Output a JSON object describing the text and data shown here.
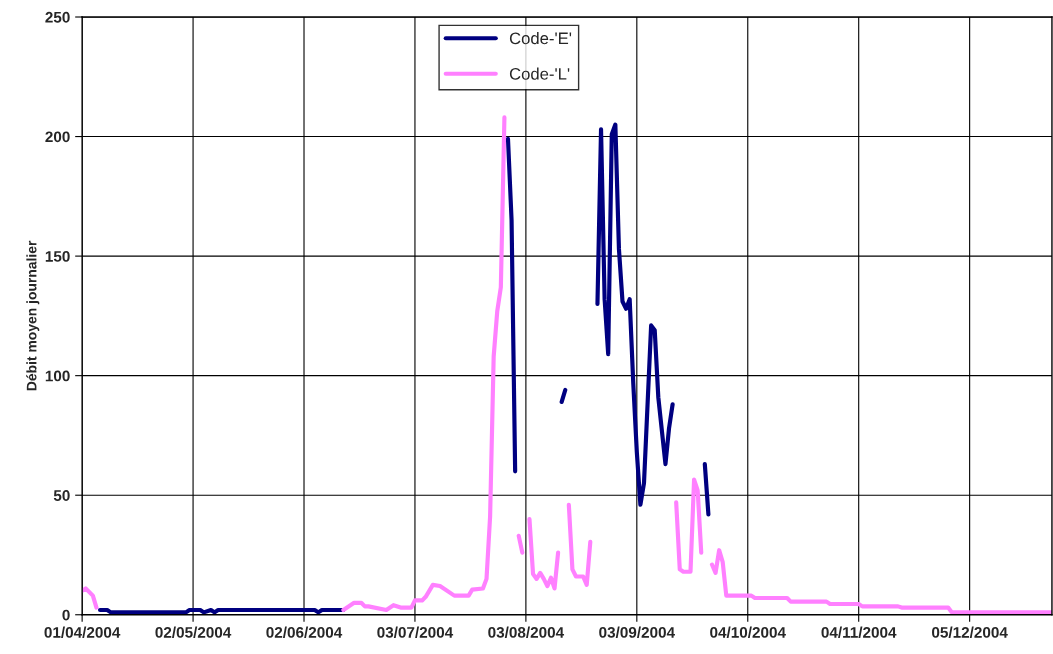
{
  "chart_data": {
    "type": "line",
    "ylabel": "Débit moyen journalier",
    "xlim": [
      "2004-04-01",
      "2004-12-28"
    ],
    "ylim": [
      0,
      250
    ],
    "yticks": [
      0,
      50,
      100,
      150,
      200,
      250
    ],
    "xticks": [
      {
        "value": "2004-04-01",
        "label": "01/04/2004"
      },
      {
        "value": "2004-05-02",
        "label": "02/05/2004"
      },
      {
        "value": "2004-06-02",
        "label": "02/06/2004"
      },
      {
        "value": "2004-07-03",
        "label": "03/07/2004"
      },
      {
        "value": "2004-08-03",
        "label": "03/08/2004"
      },
      {
        "value": "2004-09-03",
        "label": "03/09/2004"
      },
      {
        "value": "2004-10-04",
        "label": "04/10/2004"
      },
      {
        "value": "2004-11-04",
        "label": "04/11/2004"
      },
      {
        "value": "2004-12-05",
        "label": "05/12/2004"
      }
    ],
    "grid": true,
    "legend": "top",
    "line_style": "solid",
    "marker": "none",
    "series": [
      {
        "name": "Code-'E'",
        "color": "#000080",
        "x": [
          "2004-04-06",
          "2004-04-08",
          "2004-04-09",
          "2004-04-30",
          "2004-05-01",
          "2004-05-04",
          "2004-05-05",
          "2004-05-07",
          "2004-05-08",
          "2004-05-09",
          "2004-06-05",
          "2004-06-06",
          "2004-06-07",
          "2004-06-13",
          "2004-06-14",
          "2004-07-29",
          "2004-07-30",
          "2004-07-31",
          "2004-08-01",
          "2004-08-13",
          "2004-08-14",
          "2004-08-15",
          "2004-08-23",
          "2004-08-24",
          "2004-08-25",
          "2004-08-26",
          "2004-08-27",
          "2004-08-28",
          "2004-08-29",
          "2004-08-30",
          "2004-08-31",
          "2004-09-01",
          "2004-09-02",
          "2004-09-03",
          "2004-09-04",
          "2004-09-05",
          "2004-09-07",
          "2004-09-08",
          "2004-09-09",
          "2004-09-11",
          "2004-09-12",
          "2004-09-13",
          "2004-09-14",
          "2004-09-22",
          "2004-09-23"
        ],
        "values": [
          2,
          2,
          1,
          1,
          2,
          2,
          1,
          2,
          1,
          2,
          2,
          1,
          2,
          2,
          null,
          199,
          165,
          60,
          null,
          89,
          94,
          null,
          130,
          203,
          132,
          109,
          201,
          205,
          153,
          131,
          128,
          132,
          97,
          68,
          46,
          55,
          121,
          119,
          91,
          63,
          78,
          88,
          null,
          63,
          42
        ]
      },
      {
        "name": "Code-'L'",
        "color": "#ff80ff",
        "x": [
          "2004-04-01",
          "2004-04-02",
          "2004-04-04",
          "2004-04-05",
          "2004-04-06",
          "2004-06-13",
          "2004-06-16",
          "2004-06-18",
          "2004-06-19",
          "2004-06-20",
          "2004-06-25",
          "2004-06-27",
          "2004-06-29",
          "2004-07-02",
          "2004-07-03",
          "2004-07-05",
          "2004-07-06",
          "2004-07-08",
          "2004-07-10",
          "2004-07-14",
          "2004-07-18",
          "2004-07-19",
          "2004-07-22",
          "2004-07-23",
          "2004-07-24",
          "2004-07-25",
          "2004-07-26",
          "2004-07-27",
          "2004-07-28",
          "2004-07-29",
          "2004-08-01",
          "2004-08-02",
          "2004-08-03",
          "2004-08-04",
          "2004-08-05",
          "2004-08-06",
          "2004-08-07",
          "2004-08-08",
          "2004-08-09",
          "2004-08-10",
          "2004-08-11",
          "2004-08-12",
          "2004-08-13",
          "2004-08-15",
          "2004-08-16",
          "2004-08-17",
          "2004-08-19",
          "2004-08-20",
          "2004-08-21",
          "2004-08-22",
          "2004-09-14",
          "2004-09-15",
          "2004-09-16",
          "2004-09-18",
          "2004-09-19",
          "2004-09-20",
          "2004-09-21",
          "2004-09-22",
          "2004-09-24",
          "2004-09-25",
          "2004-09-26",
          "2004-09-27",
          "2004-09-28",
          "2004-10-05",
          "2004-10-06",
          "2004-10-15",
          "2004-10-16",
          "2004-10-26",
          "2004-10-27",
          "2004-11-04",
          "2004-11-05",
          "2004-11-15",
          "2004-11-16",
          "2004-11-29",
          "2004-11-30",
          "2004-12-28"
        ],
        "values": [
          10,
          11,
          8,
          3,
          null,
          2,
          5,
          5,
          3.5,
          3.5,
          2,
          4,
          3,
          3,
          6,
          6,
          7.5,
          12.5,
          12,
          8,
          8,
          10.5,
          11,
          15,
          41,
          108,
          127,
          137,
          208,
          null,
          33,
          26,
          null,
          40,
          17,
          15,
          17.5,
          15,
          12,
          15.5,
          11,
          26,
          null,
          46,
          19,
          16,
          16,
          12.5,
          30.5,
          null,
          47,
          19,
          18,
          18,
          56.5,
          52,
          26,
          null,
          21,
          17.5,
          27,
          22,
          8,
          8,
          7,
          7,
          5.5,
          5.5,
          4.5,
          4.5,
          3.5,
          3.5,
          3,
          3,
          1,
          1
        ]
      }
    ]
  }
}
